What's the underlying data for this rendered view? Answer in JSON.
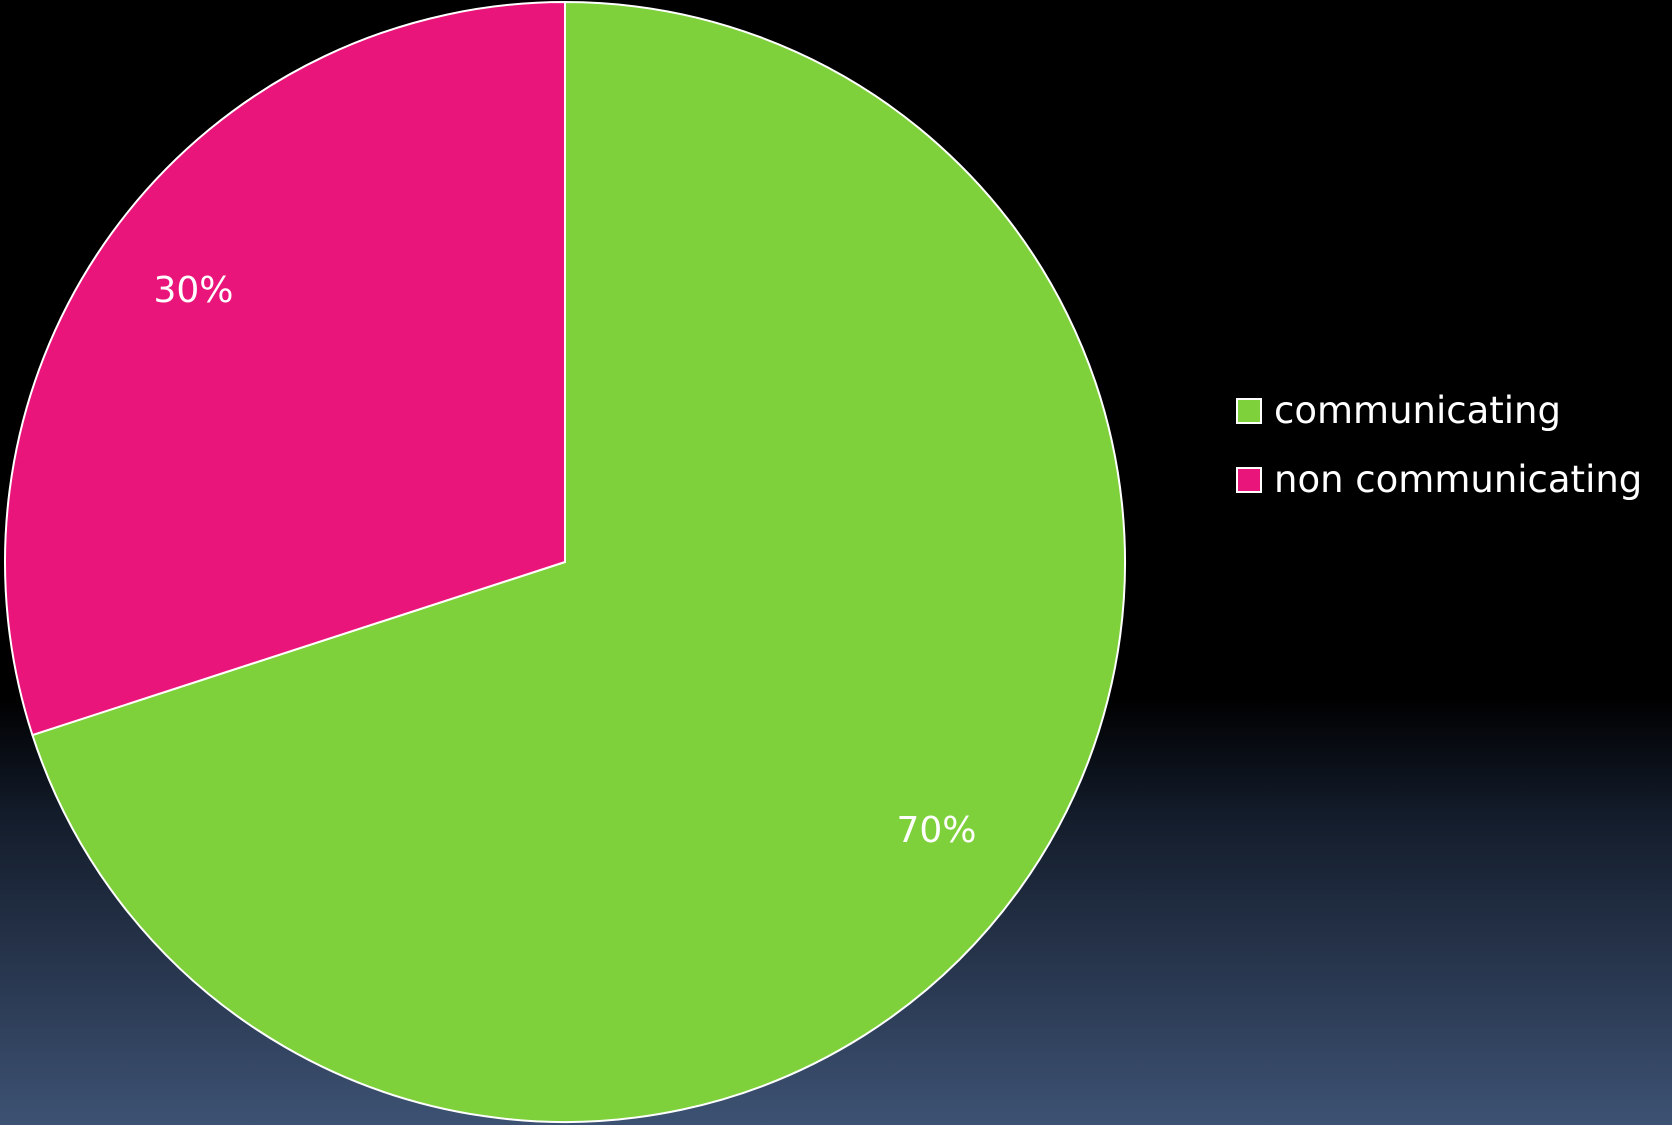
{
  "chart_data": {
    "type": "pie",
    "categories": [
      "communicating",
      "non communicating"
    ],
    "values": [
      70,
      30
    ],
    "data_labels": [
      "70%",
      "30%"
    ],
    "colors": [
      "#7fd13b",
      "#ea157a"
    ],
    "start_angle_deg": 0,
    "direction": "clockwise",
    "slice_border": "#ffffff",
    "legend": {
      "position": "right",
      "entries": [
        "communicating",
        "non communicating"
      ]
    },
    "title": ""
  }
}
